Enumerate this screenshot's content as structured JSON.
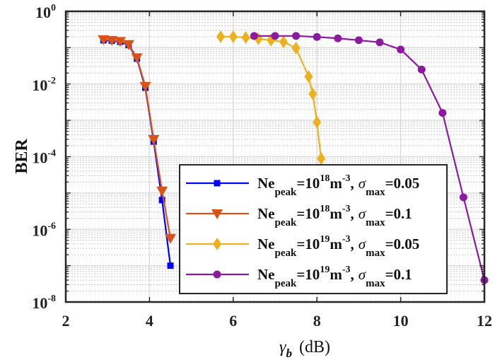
{
  "chart_data": {
    "type": "line",
    "title": "",
    "xlabel": "(dB)",
    "xlabel_symbol": "γ",
    "xlabel_symbol_sub": "b",
    "ylabel": "BER",
    "xlim": [
      2,
      12
    ],
    "ylim": [
      1e-08,
      1
    ],
    "yscale": "log",
    "grid": true,
    "x_ticks": [
      "2",
      "4",
      "6",
      "8",
      "10",
      "12"
    ],
    "y_ticks": [
      {
        "base": "10",
        "exp": "0"
      },
      {
        "base": "10",
        "exp": "-2"
      },
      {
        "base": "10",
        "exp": "-4"
      },
      {
        "base": "10",
        "exp": "-6"
      },
      {
        "base": "10",
        "exp": "-8"
      }
    ],
    "legend_position": "lower-center-right",
    "series": [
      {
        "name": "Ne_peak=10^18 m^-3, σ_max=0.05",
        "legend": {
          "ne": "Ne",
          "ne_sub": "peak",
          "eq": "=10",
          "exp": "18",
          "unit": "m",
          "unit_exp": "-3",
          "comma": ",",
          "sigma": "σ",
          "sigma_sub": "max",
          "val": "=0.05"
        },
        "color": "#0000ff",
        "marker": "square",
        "x": [
          2.9,
          3.1,
          3.3,
          3.5,
          3.7,
          3.9,
          4.1,
          4.3,
          4.5
        ],
        "y": [
          0.16,
          0.155,
          0.145,
          0.118,
          0.05,
          0.0079,
          0.00026,
          6.4e-06,
          1e-07
        ]
      },
      {
        "name": "Ne_peak=10^18 m^-3, σ_max=0.1",
        "legend": {
          "ne": "Ne",
          "ne_sub": "peak",
          "eq": "=10",
          "exp": "18",
          "unit": "m",
          "unit_exp": "-3",
          "comma": ",",
          "sigma": "σ",
          "sigma_sub": "max",
          "val": "=0.1"
        },
        "color": "#d95319",
        "marker": "triangle-down",
        "x": [
          2.9,
          3.1,
          3.3,
          3.5,
          3.7,
          3.9,
          4.1,
          4.3,
          4.5
        ],
        "y": [
          0.167,
          0.16,
          0.15,
          0.123,
          0.053,
          0.0087,
          0.0003,
          1.15e-05,
          5.7e-07
        ]
      },
      {
        "name": "Ne_peak=10^19 m^-3, σ_max=0.05",
        "legend": {
          "ne": "Ne",
          "ne_sub": "peak",
          "eq": "=10",
          "exp": "19",
          "unit": "m",
          "unit_exp": "-3",
          "comma": ",",
          "sigma": "σ",
          "sigma_sub": "max",
          "val": "=0.05"
        },
        "color": "#edb120",
        "marker": "diamond",
        "x": [
          5.7,
          6.0,
          6.3,
          6.6,
          6.9,
          7.2,
          7.5,
          7.8,
          7.9,
          8.0,
          8.1
        ],
        "y": [
          0.2,
          0.2,
          0.19,
          0.175,
          0.16,
          0.145,
          0.097,
          0.016,
          0.0053,
          0.00089,
          8.9e-05
        ]
      },
      {
        "name": "Ne_peak=10^19 m^-3, σ_max=0.1",
        "legend": {
          "ne": "Ne",
          "ne_sub": "peak",
          "eq": "=10",
          "exp": "19",
          "unit": "m",
          "unit_exp": "-3",
          "comma": ",",
          "sigma": "σ",
          "sigma_sub": "max",
          "val": "=0.1"
        },
        "color": "#8b1a9e",
        "marker": "circle",
        "x": [
          6.5,
          7.0,
          7.5,
          8.0,
          8.5,
          9.0,
          9.5,
          10.0,
          10.5,
          11.0,
          11.5,
          12.0
        ],
        "y": [
          0.21,
          0.21,
          0.21,
          0.197,
          0.18,
          0.16,
          0.14,
          0.089,
          0.025,
          0.0016,
          7.6e-06,
          4e-08
        ]
      }
    ]
  }
}
